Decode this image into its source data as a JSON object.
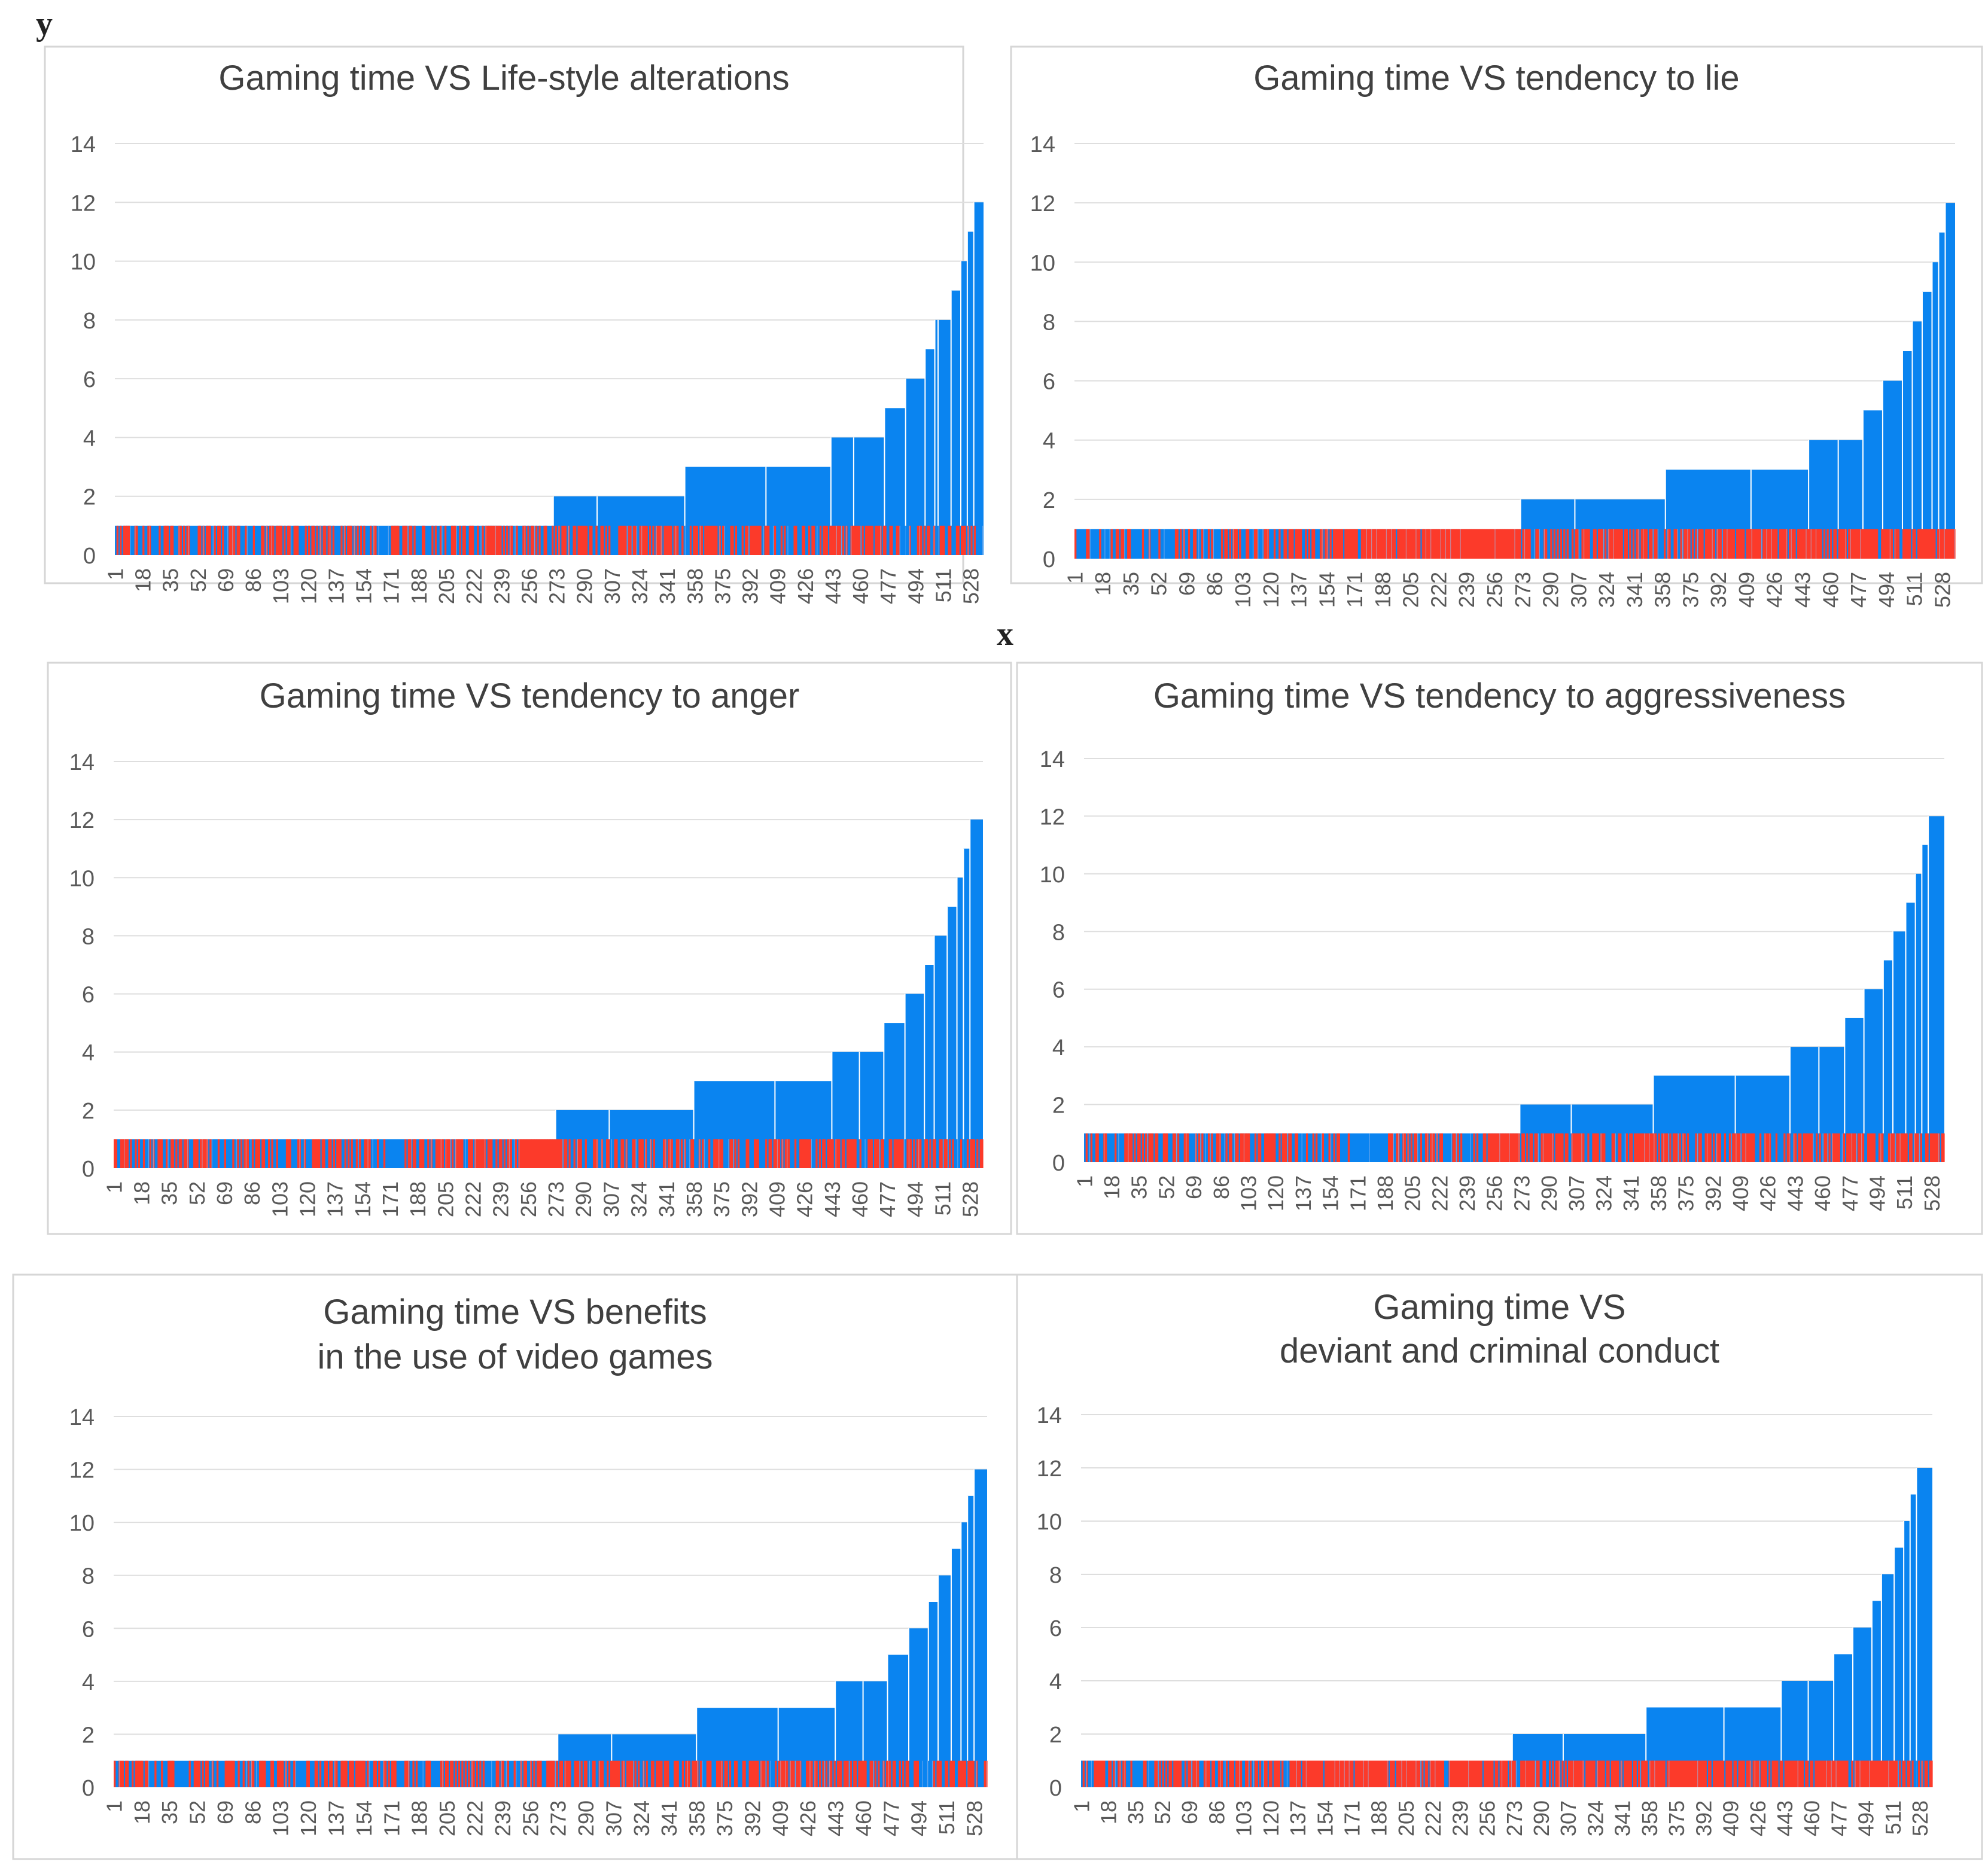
{
  "page": {
    "y_axis_letter": "y",
    "x_axis_letter": "x"
  },
  "colors": {
    "blue": "#0a84f0",
    "red": "#fc3a2a",
    "grid": "#dedede",
    "frame": "#d6d6d6",
    "title": "#404040",
    "tick": "#595959"
  },
  "chart_data": [
    {
      "type": "bar",
      "title_lines": [
        "Gaming time VS Life-style alterations"
      ],
      "x_tick_labels": [
        "1",
        "18",
        "35",
        "52",
        "69",
        "86",
        "103",
        "120",
        "137",
        "154",
        "171",
        "188",
        "205",
        "222",
        "239",
        "256",
        "273",
        "290",
        "307",
        "324",
        "341",
        "358",
        "375",
        "392",
        "409",
        "426",
        "443",
        "460",
        "477",
        "494",
        "511",
        "528"
      ],
      "y_tick_labels": [
        "0",
        "2",
        "4",
        "6",
        "8",
        "10",
        "12",
        "14"
      ],
      "ylim": [
        0,
        14
      ],
      "x_range": [
        1,
        536
      ],
      "series": [
        {
          "name": "Gaming time",
          "color": "blue",
          "steps": [
            {
              "from": 1,
              "to": 271,
              "value": 1
            },
            {
              "from": 271,
              "to": 298,
              "value": 2
            },
            {
              "from": 298,
              "to": 352,
              "value": 2
            },
            {
              "from": 352,
              "to": 402,
              "value": 3
            },
            {
              "from": 402,
              "to": 442,
              "value": 3
            },
            {
              "from": 442,
              "to": 456,
              "value": 4
            },
            {
              "from": 456,
              "to": 475,
              "value": 4
            },
            {
              "from": 475,
              "to": 488,
              "value": 5
            },
            {
              "from": 488,
              "to": 500,
              "value": 6
            },
            {
              "from": 500,
              "to": 506,
              "value": 7
            },
            {
              "from": 506,
              "to": 508,
              "value": 8
            },
            {
              "from": 508,
              "to": 516,
              "value": 8
            },
            {
              "from": 516,
              "to": 522,
              "value": 9
            },
            {
              "from": 522,
              "to": 526,
              "value": 10
            },
            {
              "from": 526,
              "to": 530,
              "value": 11
            },
            {
              "from": 530,
              "to": 536,
              "value": 12
            }
          ]
        },
        {
          "name": "Life-style alterations",
          "color": "red",
          "value": 1,
          "density_segments": [
            {
              "from": 1,
              "to": 60,
              "density": 0.45
            },
            {
              "from": 60,
              "to": 200,
              "density": 0.55
            },
            {
              "from": 200,
              "to": 270,
              "density": 0.5
            },
            {
              "from": 270,
              "to": 536,
              "density": 0.55
            }
          ]
        }
      ]
    },
    {
      "type": "bar",
      "title_lines": [
        "Gaming time VS tendency to lie"
      ],
      "x_tick_labels": [
        "1",
        "18",
        "35",
        "52",
        "69",
        "86",
        "103",
        "120",
        "137",
        "154",
        "171",
        "188",
        "205",
        "222",
        "239",
        "256",
        "273",
        "290",
        "307",
        "324",
        "341",
        "358",
        "375",
        "392",
        "409",
        "426",
        "443",
        "460",
        "477",
        "494",
        "511",
        "528"
      ],
      "y_tick_labels": [
        "0",
        "2",
        "4",
        "6",
        "8",
        "10",
        "12",
        "14"
      ],
      "ylim": [
        0,
        14
      ],
      "x_range": [
        1,
        536
      ],
      "series": [
        {
          "name": "Gaming time",
          "color": "blue",
          "steps": [
            {
              "from": 1,
              "to": 272,
              "value": 1
            },
            {
              "from": 272,
              "to": 305,
              "value": 2
            },
            {
              "from": 305,
              "to": 360,
              "value": 2
            },
            {
              "from": 360,
              "to": 412,
              "value": 3
            },
            {
              "from": 412,
              "to": 447,
              "value": 3
            },
            {
              "from": 447,
              "to": 465,
              "value": 4
            },
            {
              "from": 465,
              "to": 480,
              "value": 4
            },
            {
              "from": 480,
              "to": 492,
              "value": 5
            },
            {
              "from": 492,
              "to": 504,
              "value": 6
            },
            {
              "from": 504,
              "to": 510,
              "value": 7
            },
            {
              "from": 510,
              "to": 516,
              "value": 8
            },
            {
              "from": 516,
              "to": 522,
              "value": 9
            },
            {
              "from": 522,
              "to": 526,
              "value": 10
            },
            {
              "from": 526,
              "to": 530,
              "value": 11
            },
            {
              "from": 530,
              "to": 536,
              "value": 12
            }
          ]
        },
        {
          "name": "tendency to lie",
          "color": "red",
          "value": 1,
          "density_segments": [
            {
              "from": 1,
              "to": 45,
              "density": 0.3
            },
            {
              "from": 45,
              "to": 150,
              "density": 0.35
            },
            {
              "from": 150,
              "to": 272,
              "density": 0.95
            },
            {
              "from": 272,
              "to": 370,
              "density": 0.55
            },
            {
              "from": 370,
              "to": 536,
              "density": 0.85
            }
          ]
        }
      ]
    },
    {
      "type": "bar",
      "title_lines": [
        "Gaming time VS tendency to anger"
      ],
      "x_tick_labels": [
        "1",
        "18",
        "35",
        "52",
        "69",
        "86",
        "103",
        "120",
        "137",
        "154",
        "171",
        "188",
        "205",
        "222",
        "239",
        "256",
        "273",
        "290",
        "307",
        "324",
        "341",
        "358",
        "375",
        "392",
        "409",
        "426",
        "443",
        "460",
        "477",
        "494",
        "511",
        "528"
      ],
      "y_tick_labels": [
        "0",
        "2",
        "4",
        "6",
        "8",
        "10",
        "12",
        "14"
      ],
      "ylim": [
        0,
        14
      ],
      "x_range": [
        1,
        536
      ],
      "series": [
        {
          "name": "Gaming time",
          "color": "blue",
          "steps": [
            {
              "from": 1,
              "to": 273,
              "value": 1
            },
            {
              "from": 273,
              "to": 306,
              "value": 2
            },
            {
              "from": 306,
              "to": 358,
              "value": 2
            },
            {
              "from": 358,
              "to": 408,
              "value": 3
            },
            {
              "from": 408,
              "to": 443,
              "value": 3
            },
            {
              "from": 443,
              "to": 460,
              "value": 4
            },
            {
              "from": 460,
              "to": 475,
              "value": 4
            },
            {
              "from": 475,
              "to": 488,
              "value": 5
            },
            {
              "from": 488,
              "to": 500,
              "value": 6
            },
            {
              "from": 500,
              "to": 506,
              "value": 7
            },
            {
              "from": 506,
              "to": 514,
              "value": 8
            },
            {
              "from": 514,
              "to": 520,
              "value": 9
            },
            {
              "from": 520,
              "to": 524,
              "value": 10
            },
            {
              "from": 524,
              "to": 528,
              "value": 11
            },
            {
              "from": 528,
              "to": 536,
              "value": 12
            }
          ]
        },
        {
          "name": "tendency to anger",
          "color": "red",
          "value": 1,
          "density_segments": [
            {
              "from": 1,
              "to": 160,
              "density": 0.5
            },
            {
              "from": 160,
              "to": 185,
              "density": 0.1
            },
            {
              "from": 185,
              "to": 252,
              "density": 0.55
            },
            {
              "from": 252,
              "to": 272,
              "density": 0.95
            },
            {
              "from": 272,
              "to": 536,
              "density": 0.6
            }
          ]
        }
      ]
    },
    {
      "type": "bar",
      "title_lines": [
        "Gaming time VS tendency to aggressiveness"
      ],
      "x_tick_labels": [
        "1",
        "18",
        "35",
        "52",
        "69",
        "86",
        "103",
        "120",
        "137",
        "154",
        "171",
        "188",
        "205",
        "222",
        "239",
        "256",
        "273",
        "290",
        "307",
        "324",
        "341",
        "358",
        "375",
        "392",
        "409",
        "426",
        "443",
        "460",
        "477",
        "494",
        "511",
        "528"
      ],
      "y_tick_labels": [
        "0",
        "2",
        "4",
        "6",
        "8",
        "10",
        "12",
        "14"
      ],
      "ylim": [
        0,
        14
      ],
      "x_range": [
        1,
        536
      ],
      "series": [
        {
          "name": "Gaming time",
          "color": "blue",
          "steps": [
            {
              "from": 1,
              "to": 272,
              "value": 1
            },
            {
              "from": 272,
              "to": 304,
              "value": 2
            },
            {
              "from": 304,
              "to": 355,
              "value": 2
            },
            {
              "from": 355,
              "to": 406,
              "value": 3
            },
            {
              "from": 406,
              "to": 440,
              "value": 3
            },
            {
              "from": 440,
              "to": 458,
              "value": 4
            },
            {
              "from": 458,
              "to": 474,
              "value": 4
            },
            {
              "from": 474,
              "to": 486,
              "value": 5
            },
            {
              "from": 486,
              "to": 498,
              "value": 6
            },
            {
              "from": 498,
              "to": 504,
              "value": 7
            },
            {
              "from": 504,
              "to": 512,
              "value": 8
            },
            {
              "from": 512,
              "to": 518,
              "value": 9
            },
            {
              "from": 518,
              "to": 522,
              "value": 10
            },
            {
              "from": 522,
              "to": 526,
              "value": 11
            },
            {
              "from": 526,
              "to": 536,
              "value": 12
            }
          ]
        },
        {
          "name": "tendency to aggressiveness",
          "color": "red",
          "value": 1,
          "density_segments": [
            {
              "from": 1,
              "to": 160,
              "density": 0.5
            },
            {
              "from": 160,
              "to": 185,
              "density": 0.1
            },
            {
              "from": 185,
              "to": 250,
              "density": 0.55
            },
            {
              "from": 250,
              "to": 272,
              "density": 0.95
            },
            {
              "from": 272,
              "to": 536,
              "density": 0.65
            }
          ]
        }
      ]
    },
    {
      "type": "bar",
      "title_lines": [
        "Gaming time VS benefits",
        "in the use of video games"
      ],
      "x_tick_labels": [
        "1",
        "18",
        "35",
        "52",
        "69",
        "86",
        "103",
        "120",
        "137",
        "154",
        "171",
        "188",
        "205",
        "222",
        "239",
        "256",
        "273",
        "290",
        "307",
        "324",
        "341",
        "358",
        "375",
        "392",
        "409",
        "426",
        "443",
        "460",
        "477",
        "494",
        "511",
        "528"
      ],
      "y_tick_labels": [
        "0",
        "2",
        "4",
        "6",
        "8",
        "10",
        "12",
        "14"
      ],
      "ylim": [
        0,
        14
      ],
      "x_range": [
        1,
        536
      ],
      "series": [
        {
          "name": "Gaming time",
          "color": "blue",
          "steps": [
            {
              "from": 1,
              "to": 273,
              "value": 1
            },
            {
              "from": 273,
              "to": 306,
              "value": 2
            },
            {
              "from": 306,
              "to": 358,
              "value": 2
            },
            {
              "from": 358,
              "to": 408,
              "value": 3
            },
            {
              "from": 408,
              "to": 443,
              "value": 3
            },
            {
              "from": 443,
              "to": 460,
              "value": 4
            },
            {
              "from": 460,
              "to": 475,
              "value": 4
            },
            {
              "from": 475,
              "to": 488,
              "value": 5
            },
            {
              "from": 488,
              "to": 500,
              "value": 6
            },
            {
              "from": 500,
              "to": 506,
              "value": 7
            },
            {
              "from": 506,
              "to": 514,
              "value": 8
            },
            {
              "from": 514,
              "to": 520,
              "value": 9
            },
            {
              "from": 520,
              "to": 524,
              "value": 10
            },
            {
              "from": 524,
              "to": 528,
              "value": 11
            },
            {
              "from": 528,
              "to": 536,
              "value": 12
            }
          ]
        },
        {
          "name": "benefits in the use of video games",
          "color": "red",
          "value": 1,
          "density_segments": [
            {
              "from": 1,
              "to": 200,
              "density": 0.5
            },
            {
              "from": 200,
              "to": 260,
              "density": 0.35
            },
            {
              "from": 260,
              "to": 536,
              "density": 0.6
            }
          ]
        }
      ]
    },
    {
      "type": "bar",
      "title_lines": [
        "Gaming time VS",
        "deviant and criminal conduct"
      ],
      "x_tick_labels": [
        "1",
        "18",
        "35",
        "52",
        "69",
        "86",
        "103",
        "120",
        "137",
        "154",
        "171",
        "188",
        "205",
        "222",
        "239",
        "256",
        "273",
        "290",
        "307",
        "324",
        "341",
        "358",
        "375",
        "392",
        "409",
        "426",
        "443",
        "460",
        "477",
        "494",
        "511",
        "528"
      ],
      "y_tick_labels": [
        "0",
        "2",
        "4",
        "6",
        "8",
        "10",
        "12",
        "14"
      ],
      "ylim": [
        0,
        14
      ],
      "x_range": [
        1,
        536
      ],
      "series": [
        {
          "name": "Gaming time",
          "color": "blue",
          "steps": [
            {
              "from": 1,
              "to": 272,
              "value": 1
            },
            {
              "from": 272,
              "to": 304,
              "value": 2
            },
            {
              "from": 304,
              "to": 356,
              "value": 2
            },
            {
              "from": 356,
              "to": 405,
              "value": 3
            },
            {
              "from": 405,
              "to": 441,
              "value": 3
            },
            {
              "from": 441,
              "to": 458,
              "value": 4
            },
            {
              "from": 458,
              "to": 474,
              "value": 4
            },
            {
              "from": 474,
              "to": 486,
              "value": 5
            },
            {
              "from": 486,
              "to": 498,
              "value": 6
            },
            {
              "from": 498,
              "to": 504,
              "value": 7
            },
            {
              "from": 504,
              "to": 512,
              "value": 8
            },
            {
              "from": 512,
              "to": 518,
              "value": 9
            },
            {
              "from": 518,
              "to": 522,
              "value": 10
            },
            {
              "from": 522,
              "to": 526,
              "value": 11
            },
            {
              "from": 526,
              "to": 536,
              "value": 12
            }
          ]
        },
        {
          "name": "deviant and criminal conduct",
          "color": "red",
          "value": 1,
          "density_segments": [
            {
              "from": 1,
              "to": 60,
              "density": 0.45
            },
            {
              "from": 60,
              "to": 140,
              "density": 0.6
            },
            {
              "from": 140,
              "to": 272,
              "density": 0.92
            },
            {
              "from": 272,
              "to": 536,
              "density": 0.8
            }
          ]
        }
      ]
    }
  ]
}
